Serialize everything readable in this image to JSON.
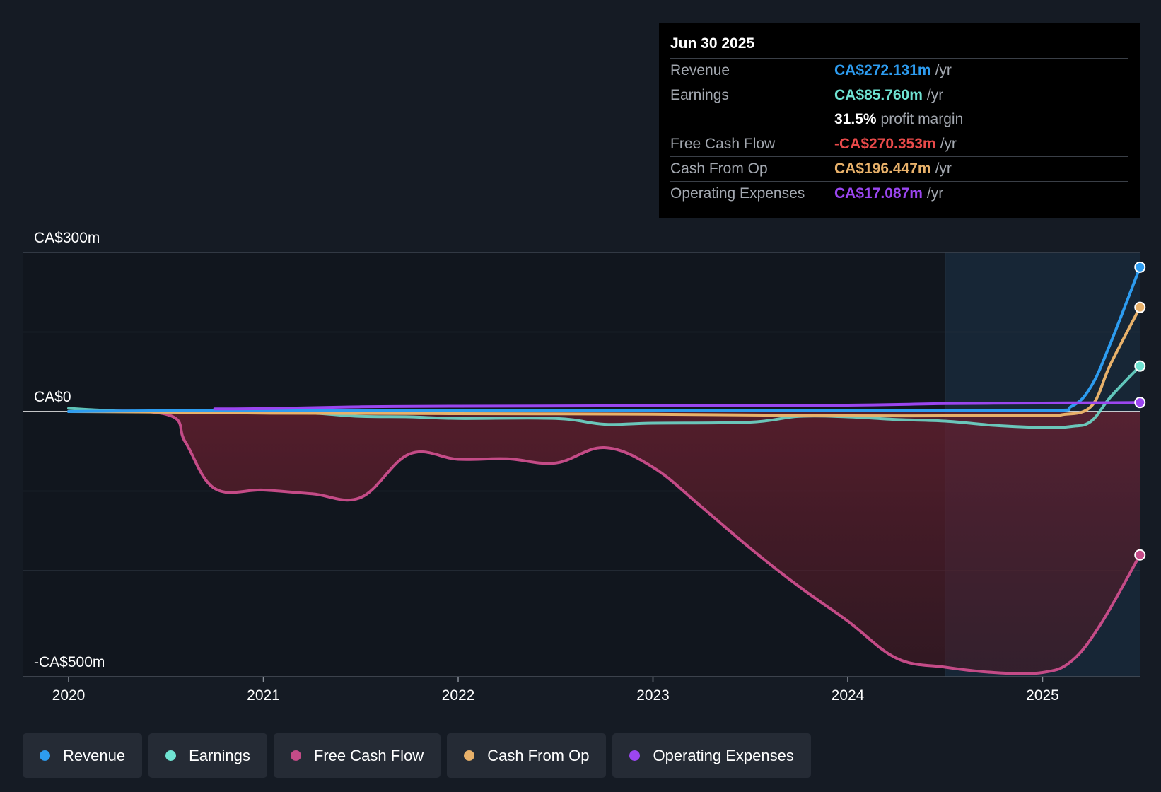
{
  "chart_data": {
    "type": "line",
    "y_ticks": [
      "CA$300m",
      "CA$0",
      "-CA$500m"
    ],
    "ylim": [
      -500,
      300
    ],
    "xlim": [
      2020,
      2025.5
    ],
    "x_ticks": [
      "2020",
      "2021",
      "2022",
      "2023",
      "2024",
      "2025"
    ],
    "x_tick_values": [
      2020,
      2021,
      2022,
      2023,
      2024,
      2025
    ],
    "forecast_start": 2024.5,
    "series": [
      {
        "name": "Revenue",
        "color": "#2d9cf0",
        "values": [
          [
            2020.0,
            0
          ],
          [
            2020.25,
            1
          ],
          [
            2020.5,
            1.5
          ],
          [
            2021,
            2
          ],
          [
            2022,
            2
          ],
          [
            2023,
            2
          ],
          [
            2024,
            2
          ],
          [
            2025,
            2
          ],
          [
            2025.15,
            10
          ],
          [
            2025.25,
            48
          ],
          [
            2025.35,
            130
          ],
          [
            2025.5,
            272.131
          ]
        ]
      },
      {
        "name": "Earnings",
        "color": "#6fe3d2",
        "values": [
          [
            2020.0,
            6
          ],
          [
            2020.25,
            1
          ],
          [
            2020.5,
            -1
          ],
          [
            2021,
            -2
          ],
          [
            2021.25,
            -3
          ],
          [
            2021.5,
            -9
          ],
          [
            2021.75,
            -10
          ],
          [
            2022,
            -13
          ],
          [
            2022.5,
            -13
          ],
          [
            2022.75,
            -24
          ],
          [
            2023,
            -22
          ],
          [
            2023.5,
            -20
          ],
          [
            2023.75,
            -9
          ],
          [
            2024,
            -10
          ],
          [
            2024.25,
            -15
          ],
          [
            2024.5,
            -18
          ],
          [
            2024.75,
            -26
          ],
          [
            2025,
            -30
          ],
          [
            2025.15,
            -28
          ],
          [
            2025.25,
            -18
          ],
          [
            2025.35,
            28
          ],
          [
            2025.5,
            85.76
          ]
        ]
      },
      {
        "name": "Free Cash Flow",
        "color": "#c44b87",
        "values": [
          [
            2020.0,
            0
          ],
          [
            2020.5,
            -5
          ],
          [
            2020.6,
            -58
          ],
          [
            2020.75,
            -145
          ],
          [
            2021,
            -148
          ],
          [
            2021.25,
            -155
          ],
          [
            2021.5,
            -162
          ],
          [
            2021.75,
            -80
          ],
          [
            2022,
            -90
          ],
          [
            2022.25,
            -89
          ],
          [
            2022.5,
            -97
          ],
          [
            2022.75,
            -68
          ],
          [
            2023,
            -105
          ],
          [
            2023.25,
            -180
          ],
          [
            2023.5,
            -258
          ],
          [
            2023.75,
            -330
          ],
          [
            2024,
            -395
          ],
          [
            2024.25,
            -465
          ],
          [
            2024.5,
            -482
          ],
          [
            2024.75,
            -492
          ],
          [
            2025,
            -492
          ],
          [
            2025.15,
            -470
          ],
          [
            2025.3,
            -400
          ],
          [
            2025.5,
            -270.353
          ]
        ]
      },
      {
        "name": "Cash From Op",
        "color": "#e8b16a",
        "values": [
          [
            2020.0,
            0
          ],
          [
            2020.5,
            -1
          ],
          [
            2021,
            -3
          ],
          [
            2022,
            -4
          ],
          [
            2023,
            -5
          ],
          [
            2024,
            -8
          ],
          [
            2024.5,
            -8
          ],
          [
            2025,
            -8
          ],
          [
            2025.1,
            -6
          ],
          [
            2025.25,
            10
          ],
          [
            2025.35,
            90
          ],
          [
            2025.5,
            196.447
          ]
        ]
      },
      {
        "name": "Operating Expenses",
        "color": "#9b46f0",
        "values": [
          [
            2020.75,
            5
          ],
          [
            2021,
            5.5
          ],
          [
            2021.5,
            9
          ],
          [
            2022,
            10
          ],
          [
            2023,
            11
          ],
          [
            2024,
            12
          ],
          [
            2024.5,
            15
          ],
          [
            2025,
            16
          ],
          [
            2025.5,
            17.087
          ]
        ]
      }
    ]
  },
  "tooltip": {
    "date": "Jun 30 2025",
    "revenue": {
      "label": "Revenue",
      "value": "CA$272.131m",
      "unit": "/yr",
      "color": "#2d9cf0"
    },
    "earnings": {
      "label": "Earnings",
      "value": "CA$85.760m",
      "unit": "/yr",
      "color": "#6fe3d2"
    },
    "margin": {
      "value": "31.5%",
      "unit": "profit margin"
    },
    "fcf": {
      "label": "Free Cash Flow",
      "value": "-CA$270.353m",
      "unit": "/yr",
      "color": "#e84a4a"
    },
    "cfo": {
      "label": "Cash From Op",
      "value": "CA$196.447m",
      "unit": "/yr",
      "color": "#e8b16a"
    },
    "opex": {
      "label": "Operating Expenses",
      "value": "CA$17.087m",
      "unit": "/yr",
      "color": "#9b46f0"
    }
  },
  "legend": [
    {
      "label": "Revenue",
      "color": "#2d9cf0"
    },
    {
      "label": "Earnings",
      "color": "#6fe3d2"
    },
    {
      "label": "Free Cash Flow",
      "color": "#c44b87"
    },
    {
      "label": "Cash From Op",
      "color": "#e8b16a"
    },
    {
      "label": "Operating Expenses",
      "color": "#9b46f0"
    }
  ]
}
